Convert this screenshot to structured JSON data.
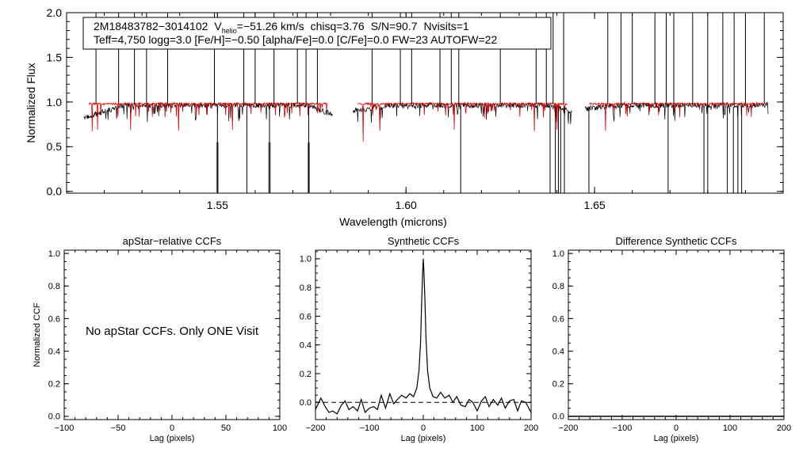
{
  "chart_data": [
    {
      "id": "spectrum",
      "type": "line",
      "xlabel": "Wavelength (microns)",
      "ylabel": "Normalized Flux",
      "xlim": [
        1.51,
        1.7
      ],
      "ylim": [
        -0.02,
        2.0
      ],
      "xticks": [
        1.55,
        1.6,
        1.65
      ],
      "xtick_labels": [
        "1.55",
        "1.60",
        "1.65"
      ],
      "yticks": [
        0.0,
        0.5,
        1.0,
        1.5,
        2.0
      ],
      "ytick_labels": [
        "0.0",
        "0.5",
        "1.0",
        "1.5",
        "2.0"
      ],
      "info_line1": {
        "object": "2M18483782−3014102",
        "v_prefix": "V",
        "v_sub": "helio",
        "v_value": "=−51.26 km/s",
        "chisq": "chisq=3.76",
        "sn": "S/N=90.7",
        "nvisits": "Nvisits=1"
      },
      "info_line2": "Teff=4,750 logg=3.0 [Fe/H]=−0.50 [alpha/Fe]=0.0 [C/Fe]=0.0 FW=23 AUTOFW=22",
      "colors": {
        "observed": "#000000",
        "model": "#e00000",
        "masked": "#777777"
      },
      "segments": [
        {
          "start": 1.5145,
          "end": 1.5805,
          "start_level": 0.82,
          "end_level": 0.86
        },
        {
          "start": 1.586,
          "end": 1.644,
          "start_level": 0.9,
          "end_level": 0.89
        },
        {
          "start": 1.6475,
          "end": 1.696,
          "start_level": 0.92,
          "end_level": 0.97
        }
      ],
      "model_level": 0.98,
      "spikes_up": [
        1.5178,
        1.5238,
        1.528,
        1.5312,
        1.5368,
        1.5492,
        1.557,
        1.56,
        1.565,
        1.5712,
        1.5735,
        1.5765,
        1.591,
        1.5985,
        1.6015,
        1.609,
        1.612,
        1.614,
        1.625,
        1.6345,
        1.6372,
        1.639,
        1.6418,
        1.6535,
        1.657,
        1.66,
        1.666,
        1.669,
        1.671,
        1.676,
        1.68,
        1.684,
        1.687,
        1.69,
        1.695
      ],
      "spikes_down": [
        1.55,
        1.5578,
        1.5638,
        1.5742,
        1.6145,
        1.6382,
        1.6396,
        1.6404,
        1.641,
        1.642,
        1.6485,
        1.6695,
        1.679,
        1.68,
        1.6852,
        1.6868,
        1.688,
        1.689
      ],
      "masked_regions": [
        1.55,
        1.5638,
        1.5742
      ]
    },
    {
      "id": "apstar_ccf",
      "type": "line",
      "title": "apStar−relative CCFs",
      "xlabel": "Lag (pixels)",
      "ylabel": "Normalized CCF",
      "xlim": [
        -100,
        100
      ],
      "ylim": [
        -0.02,
        1.02
      ],
      "xticks": [
        -100,
        -50,
        0,
        50,
        100
      ],
      "xtick_labels": [
        "−100",
        "−50",
        "0",
        "50",
        "100"
      ],
      "yticks": [
        0.0,
        0.2,
        0.4,
        0.6,
        0.8,
        1.0
      ],
      "ytick_labels": [
        "0.0",
        "0.2",
        "0.4",
        "0.6",
        "0.8",
        "1.0"
      ],
      "annotation": "No apStar CCFs.  Only ONE Visit"
    },
    {
      "id": "synthetic_ccf",
      "type": "line",
      "title": "Synthetic CCFs",
      "xlabel": "Lag (pixels)",
      "xlim": [
        -200,
        200
      ],
      "ylim": [
        -0.12,
        1.06
      ],
      "xticks": [
        -200,
        -100,
        0,
        100,
        200
      ],
      "xtick_labels": [
        "−200",
        "−100",
        "0",
        "100",
        "200"
      ],
      "yticks": [
        0.0,
        0.2,
        0.4,
        0.6,
        0.8,
        1.0
      ],
      "ytick_labels": [
        "0.0",
        "0.2",
        "0.4",
        "0.6",
        "0.8",
        "1.0"
      ],
      "zero_line": 0.0,
      "x": [
        -200,
        -190,
        -182,
        -175,
        -168,
        -160,
        -152,
        -145,
        -138,
        -130,
        -122,
        -115,
        -108,
        -100,
        -92,
        -85,
        -78,
        -70,
        -62,
        -55,
        -48,
        -40,
        -32,
        -25,
        -18,
        -12,
        -8,
        -5,
        -3,
        -1,
        0,
        1,
        3,
        5,
        8,
        12,
        18,
        25,
        32,
        40,
        48,
        55,
        62,
        70,
        78,
        85,
        92,
        100,
        108,
        115,
        122,
        130,
        138,
        145,
        152,
        160,
        168,
        175,
        182,
        190,
        200
      ],
      "y": [
        -0.05,
        0.03,
        -0.03,
        -0.07,
        -0.06,
        -0.08,
        -0.02,
        0.01,
        -0.05,
        -0.03,
        -0.06,
        0.02,
        -0.07,
        -0.04,
        -0.03,
        -0.05,
        0.05,
        -0.04,
        0.06,
        -0.01,
        0.02,
        0.05,
        0.03,
        0.06,
        0.04,
        0.1,
        0.22,
        0.42,
        0.7,
        0.92,
        1.0,
        0.93,
        0.72,
        0.45,
        0.22,
        0.1,
        0.04,
        0.03,
        0.07,
        0.03,
        0.05,
        0.0,
        0.04,
        -0.02,
        -0.03,
        0.02,
        0.0,
        -0.06,
        0.01,
        0.04,
        -0.03,
        0.02,
        -0.02,
        0.03,
        -0.04,
        0.01,
        0.02,
        -0.06,
        0.01,
        0.0,
        -0.07
      ]
    },
    {
      "id": "difference_ccf",
      "type": "line",
      "title": "Difference Synthetic CCFs",
      "xlabel": "Lag (pixels)",
      "xlim": [
        -200,
        200
      ],
      "ylim": [
        -0.02,
        1.02
      ],
      "xticks": [
        -200,
        -100,
        0,
        100,
        200
      ],
      "xtick_labels": [
        "−200",
        "−100",
        "0",
        "100",
        "200"
      ],
      "yticks": [
        0.0,
        0.2,
        0.4,
        0.6,
        0.8,
        1.0
      ],
      "ytick_labels": [
        "0.0",
        "0.2",
        "0.4",
        "0.6",
        "0.8",
        "1.0"
      ],
      "x": [
        -200,
        200
      ],
      "y": [
        0.0,
        0.0
      ]
    }
  ]
}
